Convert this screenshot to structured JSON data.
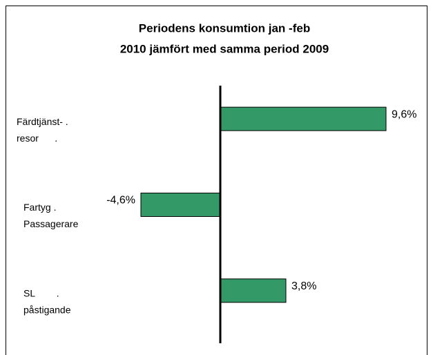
{
  "chart_data": {
    "type": "hbar",
    "title": [
      "Periodens konsumtion jan -feb",
      "2010 jämfört med samma period 2009"
    ],
    "categories": [
      [
        "Färdtjänst- .",
        "resor      ."
      ],
      [
        "Fartyg .",
        "Passagerare"
      ],
      [
        "SL        .",
        "påstigande"
      ]
    ],
    "values": [
      9.6,
      -4.6,
      3.8
    ],
    "value_labels": [
      "9,6%",
      "-4,6%",
      "3,8%"
    ],
    "color": "#339966"
  }
}
